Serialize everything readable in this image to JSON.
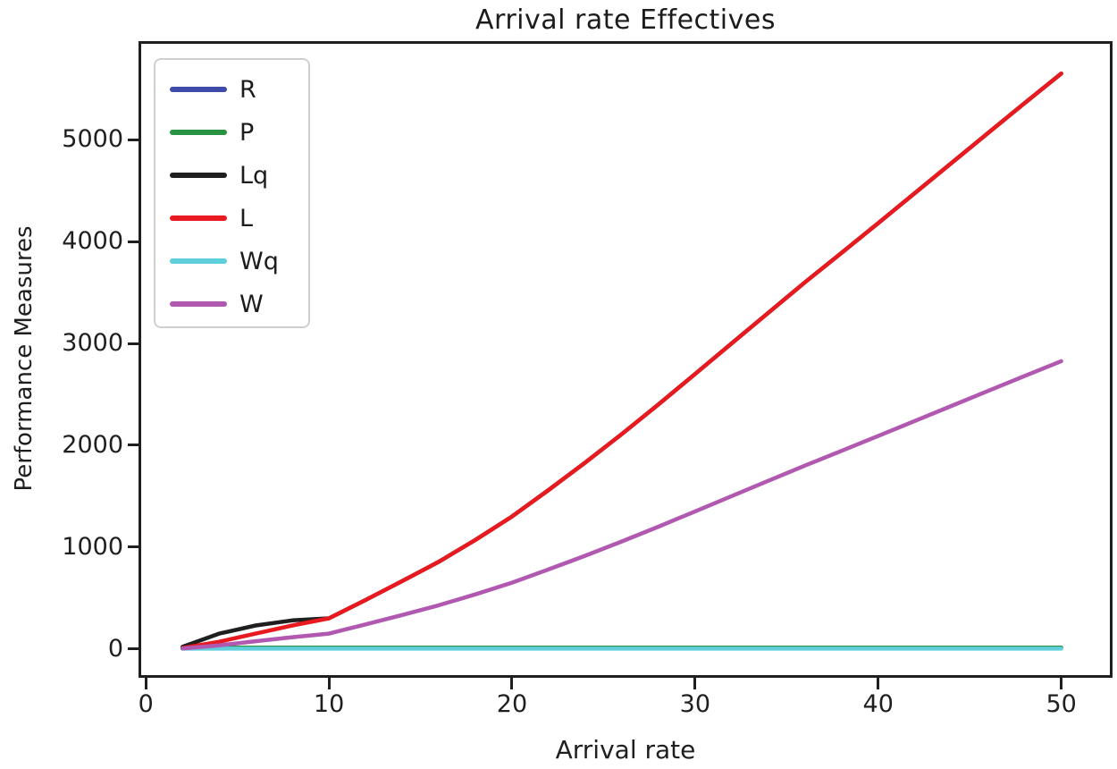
{
  "chart_data": {
    "type": "line",
    "title": "Arrival rate Effectives",
    "xlabel": "Arrival rate",
    "ylabel": "Performance Measures",
    "xlim": [
      -0.4,
      52.8
    ],
    "ylim": [
      -284,
      5968
    ],
    "xticks": [
      0,
      10,
      20,
      30,
      40,
      50
    ],
    "yticks": [
      0,
      1000,
      2000,
      3000,
      4000,
      5000
    ],
    "grid": false,
    "legend_position": "upper left",
    "x": [
      2,
      4,
      6,
      8,
      10,
      12,
      14,
      16,
      18,
      20,
      22,
      24,
      26,
      28,
      30,
      32,
      34,
      36,
      38,
      40,
      42,
      44,
      46,
      48,
      50
    ],
    "series": [
      {
        "name": "R",
        "color": "#3e4ba8",
        "values": [
          12,
          12,
          12,
          12,
          12,
          12,
          12,
          12,
          12,
          12,
          12,
          12,
          12,
          12,
          12,
          12,
          12,
          12,
          12,
          12,
          12,
          12,
          12,
          12,
          12
        ]
      },
      {
        "name": "P",
        "color": "#27923f",
        "values": [
          12,
          12,
          12,
          12,
          12,
          12,
          12,
          12,
          12,
          12,
          12,
          12,
          12,
          12,
          12,
          12,
          12,
          12,
          12,
          12,
          12,
          12,
          12,
          12,
          12
        ]
      },
      {
        "name": "Lq",
        "color": "#1f1f1f",
        "values": [
          20,
          150,
          230,
          280,
          300,
          480,
          665,
          855,
          1070,
          1300,
          1560,
          1830,
          2110,
          2400,
          2700,
          3000,
          3300,
          3600,
          3890,
          4180,
          4475,
          4770,
          5065,
          5360,
          5650
        ]
      },
      {
        "name": "L",
        "color": "#e8191f",
        "values": [
          8,
          70,
          150,
          230,
          300,
          480,
          665,
          855,
          1070,
          1300,
          1560,
          1830,
          2110,
          2400,
          2700,
          3000,
          3300,
          3600,
          3890,
          4180,
          4475,
          4770,
          5065,
          5360,
          5650
        ]
      },
      {
        "name": "Wq",
        "color": "#5fcfdc",
        "values": [
          2,
          2,
          2,
          2,
          2,
          2,
          2,
          2,
          2,
          2,
          2,
          2,
          2,
          2,
          2,
          2,
          2,
          2,
          2,
          2,
          2,
          2,
          2,
          2,
          2
        ]
      },
      {
        "name": "W",
        "color": "#b158b1",
        "values": [
          4,
          35,
          75,
          115,
          150,
          240,
          332,
          428,
          535,
          650,
          780,
          915,
          1055,
          1200,
          1350,
          1500,
          1650,
          1800,
          1945,
          2090,
          2238,
          2385,
          2533,
          2680,
          2825
        ]
      }
    ]
  },
  "legend": {
    "entries": [
      {
        "label": "R",
        "color": "#3e4ba8"
      },
      {
        "label": "P",
        "color": "#27923f"
      },
      {
        "label": "Lq",
        "color": "#1f1f1f"
      },
      {
        "label": "L",
        "color": "#e8191f"
      },
      {
        "label": "Wq",
        "color": "#5fcfdc"
      },
      {
        "label": "W",
        "color": "#b158b1"
      }
    ]
  },
  "colors": {
    "spine": "#1f1f1f",
    "text": "#1f1f1f",
    "background": "#ffffff"
  }
}
